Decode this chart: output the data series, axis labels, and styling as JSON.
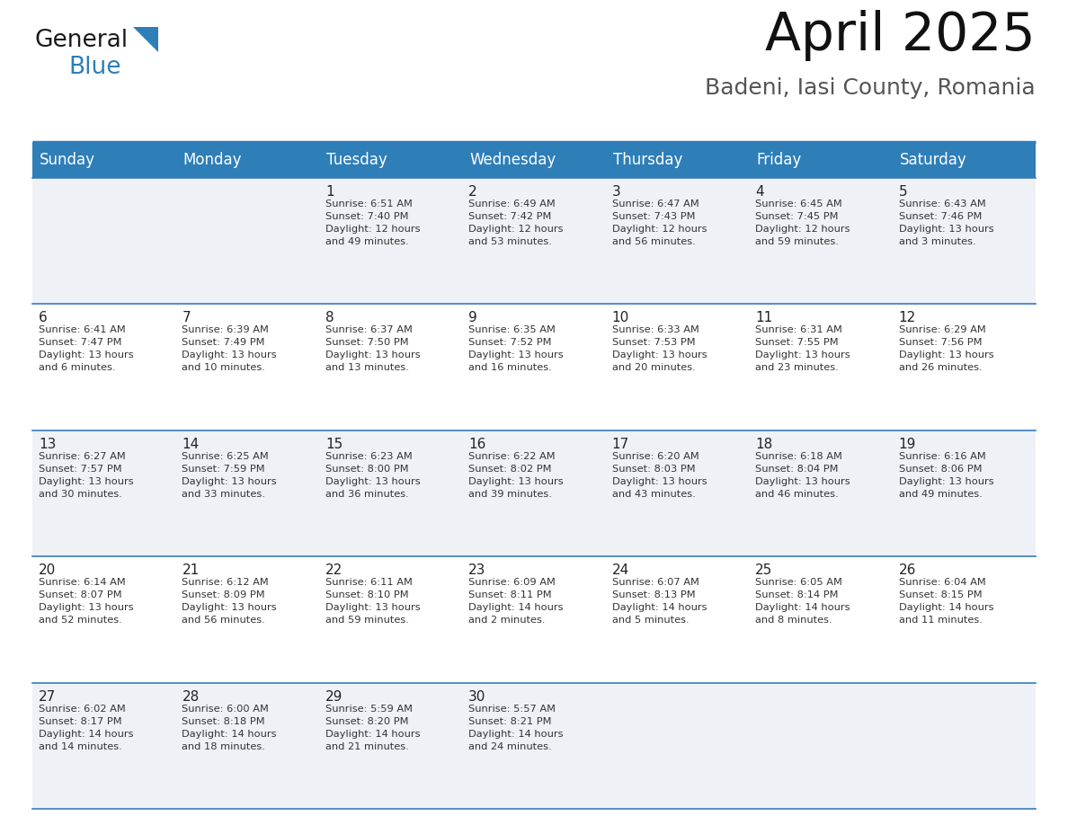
{
  "title": "April 2025",
  "subtitle": "Badeni, Iasi County, Romania",
  "header_color": "#2e7eb8",
  "header_text_color": "#ffffff",
  "cell_bg_color1": "#eef2f7",
  "cell_bg_color2": "#ffffff",
  "text_color": "#222222",
  "info_color": "#333333",
  "border_color": "#3a7abf",
  "days_of_week": [
    "Sunday",
    "Monday",
    "Tuesday",
    "Wednesday",
    "Thursday",
    "Friday",
    "Saturday"
  ],
  "weeks": [
    [
      {
        "day": "",
        "info": ""
      },
      {
        "day": "",
        "info": ""
      },
      {
        "day": "1",
        "info": "Sunrise: 6:51 AM\nSunset: 7:40 PM\nDaylight: 12 hours\nand 49 minutes."
      },
      {
        "day": "2",
        "info": "Sunrise: 6:49 AM\nSunset: 7:42 PM\nDaylight: 12 hours\nand 53 minutes."
      },
      {
        "day": "3",
        "info": "Sunrise: 6:47 AM\nSunset: 7:43 PM\nDaylight: 12 hours\nand 56 minutes."
      },
      {
        "day": "4",
        "info": "Sunrise: 6:45 AM\nSunset: 7:45 PM\nDaylight: 12 hours\nand 59 minutes."
      },
      {
        "day": "5",
        "info": "Sunrise: 6:43 AM\nSunset: 7:46 PM\nDaylight: 13 hours\nand 3 minutes."
      }
    ],
    [
      {
        "day": "6",
        "info": "Sunrise: 6:41 AM\nSunset: 7:47 PM\nDaylight: 13 hours\nand 6 minutes."
      },
      {
        "day": "7",
        "info": "Sunrise: 6:39 AM\nSunset: 7:49 PM\nDaylight: 13 hours\nand 10 minutes."
      },
      {
        "day": "8",
        "info": "Sunrise: 6:37 AM\nSunset: 7:50 PM\nDaylight: 13 hours\nand 13 minutes."
      },
      {
        "day": "9",
        "info": "Sunrise: 6:35 AM\nSunset: 7:52 PM\nDaylight: 13 hours\nand 16 minutes."
      },
      {
        "day": "10",
        "info": "Sunrise: 6:33 AM\nSunset: 7:53 PM\nDaylight: 13 hours\nand 20 minutes."
      },
      {
        "day": "11",
        "info": "Sunrise: 6:31 AM\nSunset: 7:55 PM\nDaylight: 13 hours\nand 23 minutes."
      },
      {
        "day": "12",
        "info": "Sunrise: 6:29 AM\nSunset: 7:56 PM\nDaylight: 13 hours\nand 26 minutes."
      }
    ],
    [
      {
        "day": "13",
        "info": "Sunrise: 6:27 AM\nSunset: 7:57 PM\nDaylight: 13 hours\nand 30 minutes."
      },
      {
        "day": "14",
        "info": "Sunrise: 6:25 AM\nSunset: 7:59 PM\nDaylight: 13 hours\nand 33 minutes."
      },
      {
        "day": "15",
        "info": "Sunrise: 6:23 AM\nSunset: 8:00 PM\nDaylight: 13 hours\nand 36 minutes."
      },
      {
        "day": "16",
        "info": "Sunrise: 6:22 AM\nSunset: 8:02 PM\nDaylight: 13 hours\nand 39 minutes."
      },
      {
        "day": "17",
        "info": "Sunrise: 6:20 AM\nSunset: 8:03 PM\nDaylight: 13 hours\nand 43 minutes."
      },
      {
        "day": "18",
        "info": "Sunrise: 6:18 AM\nSunset: 8:04 PM\nDaylight: 13 hours\nand 46 minutes."
      },
      {
        "day": "19",
        "info": "Sunrise: 6:16 AM\nSunset: 8:06 PM\nDaylight: 13 hours\nand 49 minutes."
      }
    ],
    [
      {
        "day": "20",
        "info": "Sunrise: 6:14 AM\nSunset: 8:07 PM\nDaylight: 13 hours\nand 52 minutes."
      },
      {
        "day": "21",
        "info": "Sunrise: 6:12 AM\nSunset: 8:09 PM\nDaylight: 13 hours\nand 56 minutes."
      },
      {
        "day": "22",
        "info": "Sunrise: 6:11 AM\nSunset: 8:10 PM\nDaylight: 13 hours\nand 59 minutes."
      },
      {
        "day": "23",
        "info": "Sunrise: 6:09 AM\nSunset: 8:11 PM\nDaylight: 14 hours\nand 2 minutes."
      },
      {
        "day": "24",
        "info": "Sunrise: 6:07 AM\nSunset: 8:13 PM\nDaylight: 14 hours\nand 5 minutes."
      },
      {
        "day": "25",
        "info": "Sunrise: 6:05 AM\nSunset: 8:14 PM\nDaylight: 14 hours\nand 8 minutes."
      },
      {
        "day": "26",
        "info": "Sunrise: 6:04 AM\nSunset: 8:15 PM\nDaylight: 14 hours\nand 11 minutes."
      }
    ],
    [
      {
        "day": "27",
        "info": "Sunrise: 6:02 AM\nSunset: 8:17 PM\nDaylight: 14 hours\nand 14 minutes."
      },
      {
        "day": "28",
        "info": "Sunrise: 6:00 AM\nSunset: 8:18 PM\nDaylight: 14 hours\nand 18 minutes."
      },
      {
        "day": "29",
        "info": "Sunrise: 5:59 AM\nSunset: 8:20 PM\nDaylight: 14 hours\nand 21 minutes."
      },
      {
        "day": "30",
        "info": "Sunrise: 5:57 AM\nSunset: 8:21 PM\nDaylight: 14 hours\nand 24 minutes."
      },
      {
        "day": "",
        "info": ""
      },
      {
        "day": "",
        "info": ""
      },
      {
        "day": "",
        "info": ""
      }
    ]
  ],
  "logo_general_color": "#1a1a1a",
  "logo_blue_color": "#2e7eb8",
  "logo_triangle_color": "#2e7eb8"
}
